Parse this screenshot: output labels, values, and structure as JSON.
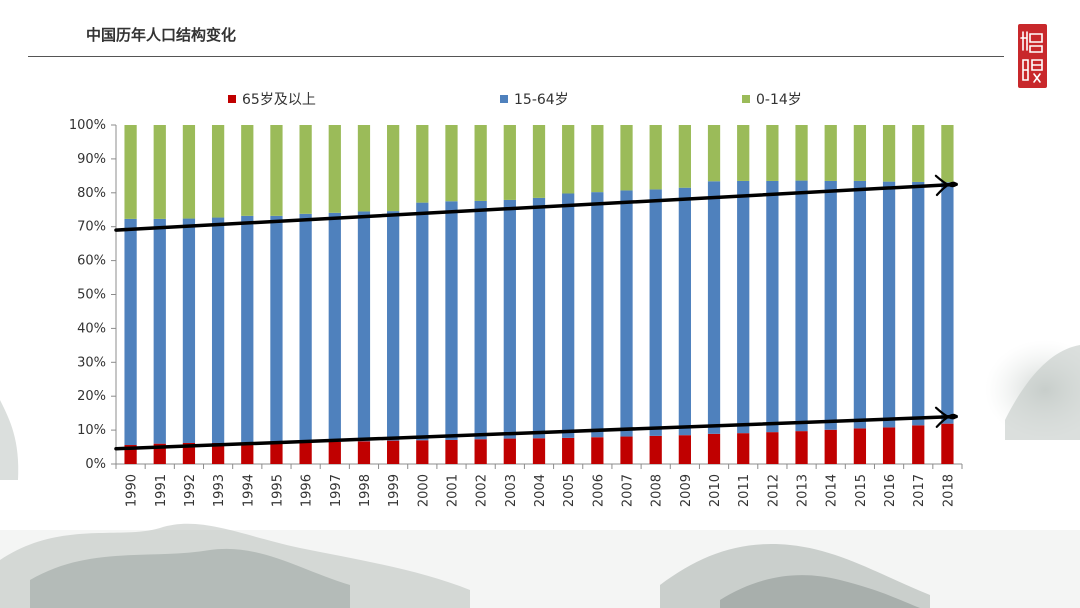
{
  "header": {
    "title": "中国历年人口结构变化"
  },
  "colors": {
    "age65plus": "#c00000",
    "age15to64": "#4f81bd",
    "age0to14": "#9bbb59",
    "seal": "#c8282b",
    "rule": "#555555"
  },
  "chart_data": {
    "type": "bar",
    "stacked": true,
    "stack_mode": "percent",
    "title": "",
    "xlabel": "",
    "ylabel": "",
    "ylim": [
      0,
      100
    ],
    "yticks": [
      "0%",
      "10%",
      "20%",
      "30%",
      "40%",
      "50%",
      "60%",
      "70%",
      "80%",
      "90%",
      "100%"
    ],
    "grid": false,
    "legend_position": "top",
    "categories": [
      "1990",
      "1991",
      "1992",
      "1993",
      "1994",
      "1995",
      "1996",
      "1997",
      "1998",
      "1999",
      "2000",
      "2001",
      "2002",
      "2003",
      "2004",
      "2005",
      "2006",
      "2007",
      "2008",
      "2009",
      "2010",
      "2011",
      "2012",
      "2013",
      "2014",
      "2015",
      "2016",
      "2017",
      "2018"
    ],
    "series": [
      {
        "name": "65岁及以上",
        "color": "#c00000",
        "values": [
          5.6,
          6.0,
          6.2,
          6.2,
          6.4,
          6.2,
          6.4,
          6.5,
          6.7,
          6.9,
          7.0,
          7.1,
          7.3,
          7.5,
          7.6,
          7.7,
          7.9,
          8.1,
          8.3,
          8.5,
          8.9,
          9.1,
          9.4,
          9.7,
          10.1,
          10.5,
          10.8,
          11.4,
          11.9
        ]
      },
      {
        "name": "15-64岁",
        "color": "#4f81bd",
        "values": [
          66.7,
          66.3,
          66.2,
          66.5,
          66.8,
          67.0,
          67.4,
          67.6,
          67.8,
          67.7,
          70.1,
          70.4,
          70.3,
          70.4,
          70.9,
          72.1,
          72.3,
          72.6,
          72.7,
          73.0,
          74.5,
          74.4,
          74.1,
          73.9,
          73.4,
          73.0,
          72.5,
          71.8,
          71.2
        ]
      },
      {
        "name": "0-14岁",
        "color": "#9bbb59",
        "values": [
          27.7,
          27.7,
          27.6,
          27.3,
          26.8,
          26.8,
          26.2,
          25.9,
          25.5,
          25.4,
          22.9,
          22.5,
          22.4,
          22.1,
          21.5,
          20.2,
          19.8,
          19.3,
          19.0,
          18.5,
          16.6,
          16.5,
          16.5,
          16.4,
          16.5,
          16.5,
          16.7,
          16.8,
          16.9
        ]
      }
    ],
    "annotations": [
      {
        "type": "arrow",
        "description": "upward trend arrow along 65岁及以上 boundary",
        "from": [
          "1990",
          4.5
        ],
        "to": [
          "2018",
          14
        ]
      },
      {
        "type": "arrow",
        "description": "upward trend arrow along 15-64岁 top boundary",
        "from": [
          "1990",
          69
        ],
        "to": [
          "2018",
          82.5
        ]
      }
    ]
  }
}
